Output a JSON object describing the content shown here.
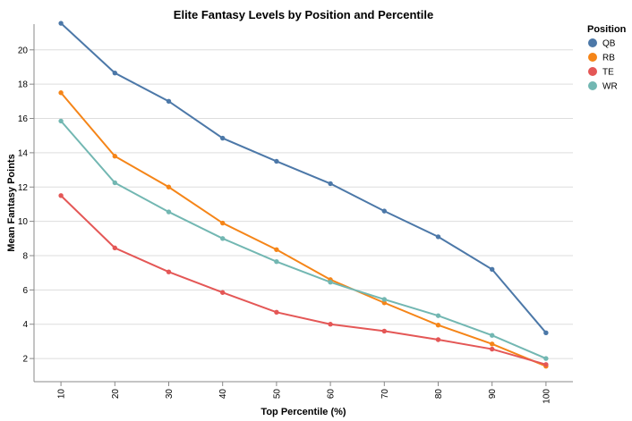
{
  "chart_data": {
    "type": "line",
    "title": "Elite Fantasy Levels by Position and Percentile",
    "xlabel": "Top Percentile (%)",
    "ylabel": "Mean Fantasy Points",
    "x": [
      10,
      20,
      30,
      40,
      50,
      60,
      70,
      80,
      90,
      100
    ],
    "x_tick_labels": [
      "10",
      "20",
      "30",
      "40",
      "50",
      "60",
      "70",
      "80",
      "90",
      "100"
    ],
    "y_ticks": [
      2,
      4,
      6,
      8,
      10,
      12,
      14,
      16,
      18,
      20
    ],
    "y_tick_labels": [
      "2",
      "4",
      "6",
      "8",
      "10",
      "12",
      "14",
      "16",
      "18",
      "20"
    ],
    "ylim": [
      0.65,
      21.5
    ],
    "grid": true,
    "legend_title": "Position",
    "legend_position": "right",
    "series": [
      {
        "name": "QB",
        "color": "#4c78a8",
        "values": [
          21.55,
          18.65,
          17.0,
          14.85,
          13.5,
          12.2,
          10.6,
          9.1,
          7.2,
          3.5
        ]
      },
      {
        "name": "RB",
        "color": "#f58518",
        "values": [
          17.5,
          13.8,
          12.0,
          9.9,
          8.35,
          6.6,
          5.25,
          3.95,
          2.85,
          1.55
        ]
      },
      {
        "name": "TE",
        "color": "#e45756",
        "values": [
          11.5,
          8.45,
          7.05,
          5.85,
          4.7,
          4.0,
          3.6,
          3.1,
          2.55,
          1.65
        ]
      },
      {
        "name": "WR",
        "color": "#72b7b2",
        "values": [
          15.85,
          12.25,
          10.55,
          9.0,
          7.65,
          6.45,
          5.45,
          4.5,
          3.35,
          2.0
        ]
      }
    ]
  }
}
